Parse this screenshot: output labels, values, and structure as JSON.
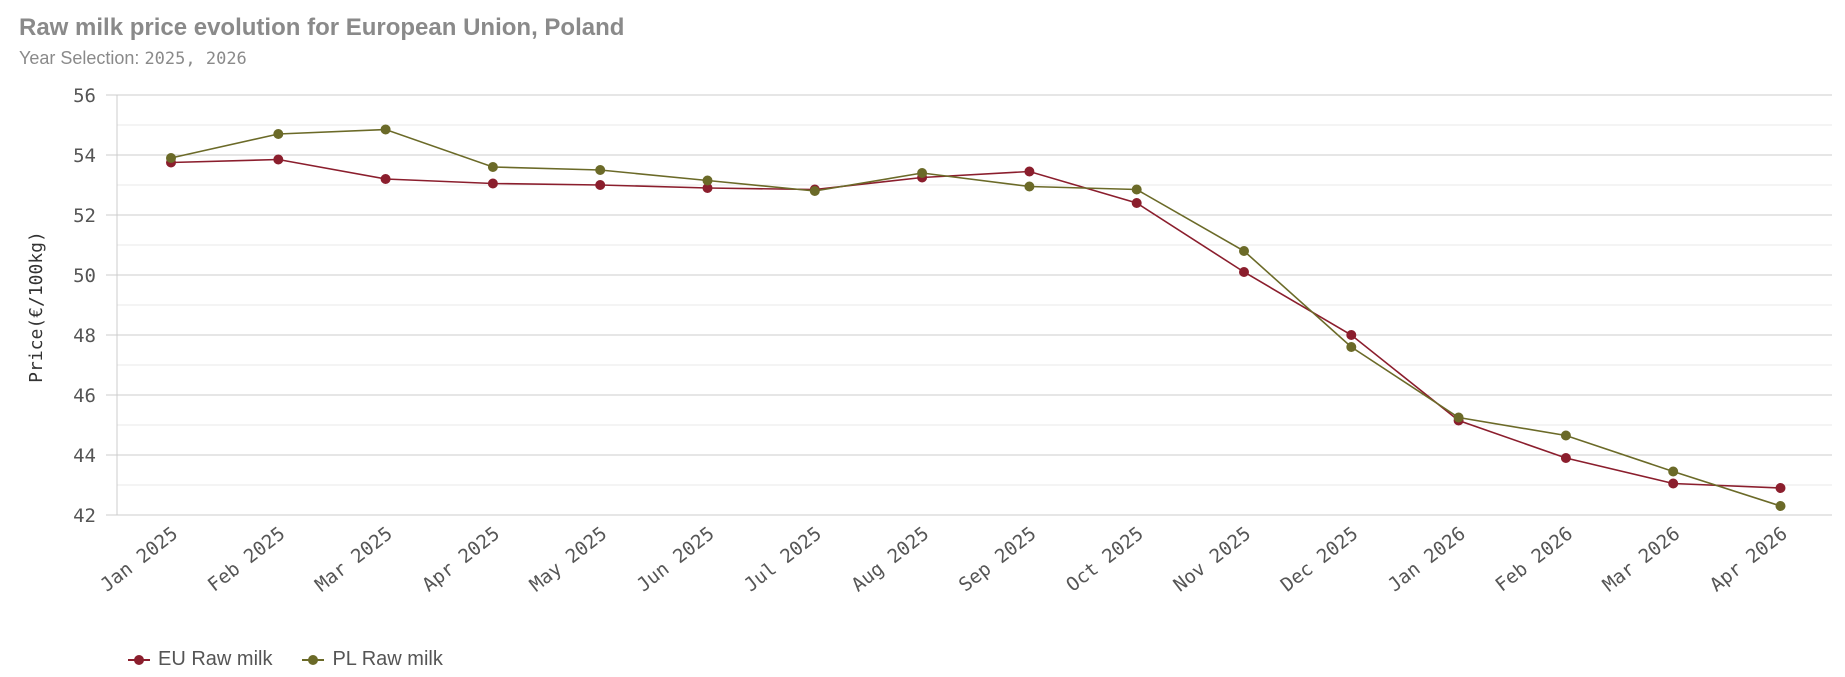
{
  "header": {
    "title": "Raw milk price evolution for European Union, Poland",
    "subtitle_label": "Year Selection:",
    "subtitle_years": "2025, 2026"
  },
  "legend": {
    "items": [
      {
        "label": "EU Raw milk",
        "color": "#8b1e2d"
      },
      {
        "label": "PL Raw milk",
        "color": "#6b6a28"
      }
    ]
  },
  "chart_data": {
    "type": "line",
    "ylabel": "Price(€/100kg)",
    "xlabel": "",
    "ylim": [
      42,
      56
    ],
    "yticks": [
      42,
      44,
      46,
      48,
      50,
      52,
      54,
      56
    ],
    "grid": true,
    "legend_position": "bottom-left",
    "categories": [
      "Jan 2025",
      "Feb 2025",
      "Mar 2025",
      "Apr 2025",
      "May 2025",
      "Jun 2025",
      "Jul 2025",
      "Aug 2025",
      "Sep 2025",
      "Oct 2025",
      "Nov 2025",
      "Dec 2025",
      "Jan 2026",
      "Feb 2026",
      "Mar 2026",
      "Apr 2026"
    ],
    "series": [
      {
        "name": "EU Raw milk",
        "color": "#8b1e2d",
        "values": [
          53.75,
          53.85,
          53.2,
          53.05,
          53.0,
          52.9,
          52.85,
          53.25,
          53.45,
          52.4,
          50.1,
          48.0,
          45.15,
          43.9,
          43.05,
          42.9
        ]
      },
      {
        "name": "PL Raw milk",
        "color": "#6b6a28",
        "values": [
          53.9,
          54.7,
          54.85,
          53.6,
          53.5,
          53.15,
          52.8,
          53.4,
          52.95,
          52.85,
          50.8,
          47.6,
          45.25,
          44.65,
          43.45,
          42.3
        ]
      }
    ]
  }
}
